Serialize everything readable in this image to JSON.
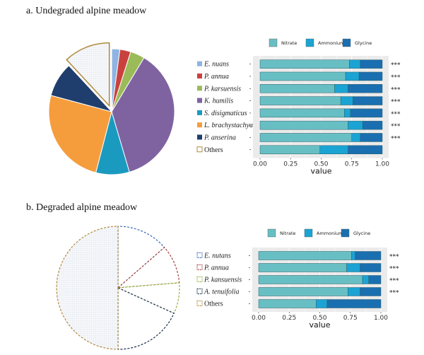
{
  "colors": {
    "Nitrate": "#67bfc4",
    "Ammonium": "#1ba3d4",
    "Glycine": "#1a6fb0",
    "panel": "#ebebeb"
  },
  "chart_data": [
    {
      "type": "pie",
      "title": "a. Undegraded alpine meadow",
      "slices": [
        {
          "label": "E. nuans",
          "value": 2.1,
          "color": "#8fb4e3"
        },
        {
          "label": "P. annua",
          "value": 2.8,
          "color": "#c9413e"
        },
        {
          "label": "P. karsuensis",
          "value": 3.7,
          "color": "#9bbb59"
        },
        {
          "label": "K. humilis",
          "value": 36.8,
          "color": "#7f63a1"
        },
        {
          "label": "S. disigmaticus",
          "value": 8.6,
          "color": "#1b9ac0"
        },
        {
          "label": "L. brachystachya",
          "value": 25.1,
          "color": "#f59d3c"
        },
        {
          "label": "P. anserina",
          "value": 8.9,
          "color": "#1f3e6e"
        },
        {
          "label": "Others",
          "value": 11.9,
          "color": "#b08a3c",
          "exploded": true
        }
      ]
    },
    {
      "type": "bar",
      "orientation": "horizontal-stacked",
      "legend": [
        "Nitrate",
        "Ammonium",
        "Glycine"
      ],
      "xlabel": "value",
      "xlim": [
        0,
        1
      ],
      "xticks": [
        "0.00",
        "0.25",
        "0.50",
        "0.75",
        "1.00"
      ],
      "categories": [
        "E. nuans",
        "P. annua",
        "P. karsuensis",
        "K. humilis",
        "S. distigmaticus",
        "L. brachystachya",
        "P. anserina",
        "Others"
      ],
      "series": [
        {
          "name": "Nitrate",
          "values": [
            0.73,
            0.7,
            0.61,
            0.66,
            0.69,
            0.72,
            0.75,
            0.49
          ]
        },
        {
          "name": "Ammonium",
          "values": [
            0.09,
            0.11,
            0.11,
            0.1,
            0.05,
            0.12,
            0.07,
            0.23
          ]
        },
        {
          "name": "Glycine",
          "values": [
            0.18,
            0.19,
            0.28,
            0.24,
            0.26,
            0.16,
            0.18,
            0.28
          ]
        }
      ],
      "annotations": [
        "***",
        "***",
        "***",
        "***",
        "***",
        "***",
        "***",
        ""
      ]
    },
    {
      "type": "pie",
      "title": "b. Degraded alpine meadow",
      "style": "dashed-outline",
      "slices": [
        {
          "label": "E. nutans",
          "value": 13.6,
          "color": "#3b6bb5"
        },
        {
          "label": "P. annua",
          "value": 10.1,
          "color": "#a8413e"
        },
        {
          "label": "P. kansuensis",
          "value": 8.1,
          "color": "#8fb23a"
        },
        {
          "label": "A. tenuifolia",
          "value": 18.2,
          "color": "#1c2f50"
        },
        {
          "label": "Others",
          "value": 50.0,
          "color": "#b08a3c",
          "filled": true
        }
      ]
    },
    {
      "type": "bar",
      "orientation": "horizontal-stacked",
      "legend": [
        "Nitrate",
        "Ammonium",
        "Glycine"
      ],
      "xlabel": "value",
      "xlim": [
        0,
        1
      ],
      "xticks": [
        "0.00",
        "0.25",
        "0.50",
        "0.75",
        "1.00"
      ],
      "categories": [
        "E. nutans",
        "P. annua",
        "P. kansuensis",
        "A. tenuifolia",
        "Others"
      ],
      "series": [
        {
          "name": "Nitrate",
          "values": [
            0.76,
            0.72,
            0.85,
            0.73,
            0.47
          ]
        },
        {
          "name": "Ammonium",
          "values": [
            0.03,
            0.11,
            0.05,
            0.1,
            0.09
          ]
        },
        {
          "name": "Glycine",
          "values": [
            0.21,
            0.17,
            0.1,
            0.17,
            0.44
          ]
        }
      ],
      "annotations": [
        "***",
        "***",
        "***",
        "***",
        ""
      ]
    }
  ]
}
